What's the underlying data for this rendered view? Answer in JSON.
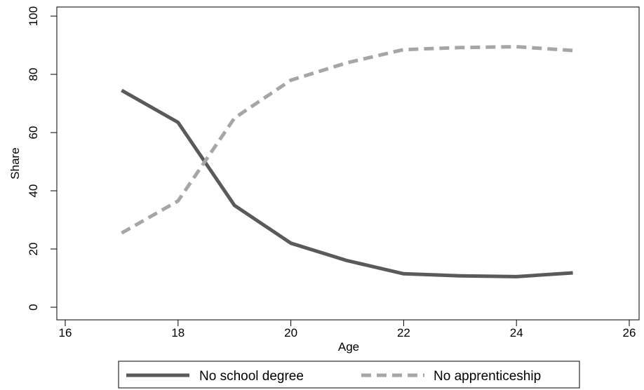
{
  "chart_data": {
    "type": "line",
    "title": "",
    "xlabel": "Age",
    "ylabel": "Share",
    "xlim": [
      16,
      26
    ],
    "ylim": [
      0,
      100
    ],
    "xticks": [
      16,
      18,
      20,
      22,
      24,
      26
    ],
    "yticks": [
      0,
      20,
      40,
      60,
      80,
      100
    ],
    "grid": false,
    "legend_position": "bottom",
    "x": [
      17,
      18,
      19,
      20,
      21,
      22,
      23,
      24,
      25
    ],
    "series": [
      {
        "name": "No school degree",
        "style": "solid",
        "color": "#5a5a5a",
        "values": [
          74.5,
          63.5,
          35.0,
          22.0,
          16.0,
          11.5,
          10.8,
          10.5,
          11.8
        ]
      },
      {
        "name": "No apprenticeship",
        "style": "dashed",
        "color": "#a6a6a6",
        "values": [
          25.5,
          36.5,
          65.0,
          78.0,
          84.0,
          88.5,
          89.2,
          89.5,
          88.2
        ]
      }
    ]
  }
}
